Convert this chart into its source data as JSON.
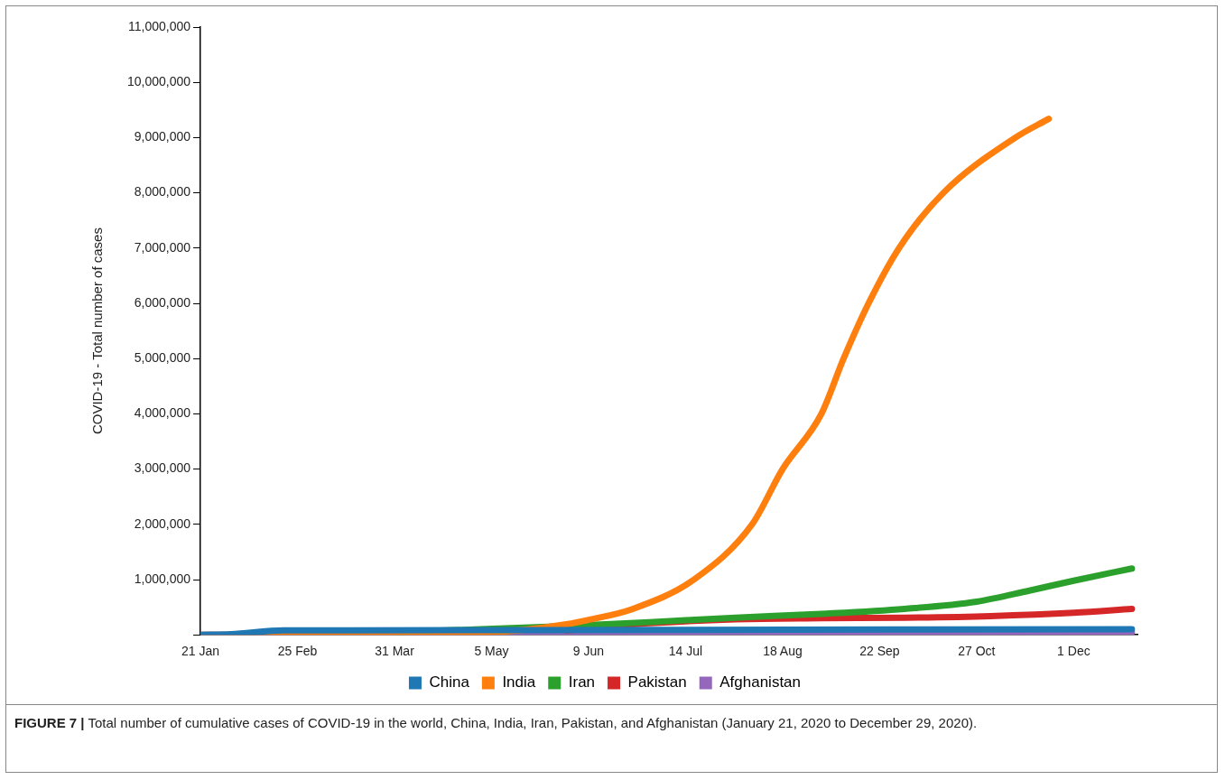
{
  "chart_data": {
    "type": "line",
    "ylabel": "COVID-19 - Total number of cases",
    "xlim": [
      "2020-01-21",
      "2020-12-24"
    ],
    "xticks": [
      {
        "value": "2020-01-21",
        "label": "21 Jan"
      },
      {
        "value": "2020-02-25",
        "label": "25 Feb"
      },
      {
        "value": "2020-03-31",
        "label": "31 Mar"
      },
      {
        "value": "2020-05-05",
        "label": "5 May"
      },
      {
        "value": "2020-06-09",
        "label": "9 Jun"
      },
      {
        "value": "2020-07-14",
        "label": "14 Jul"
      },
      {
        "value": "2020-08-18",
        "label": "18 Aug"
      },
      {
        "value": "2020-09-22",
        "label": "22 Sep"
      },
      {
        "value": "2020-10-27",
        "label": "27 Oct"
      },
      {
        "value": "2020-12-01",
        "label": "1 Dec"
      }
    ],
    "ylim": [
      0,
      11000000
    ],
    "yticks": [
      {
        "value": 0,
        "label": null
      },
      {
        "value": 1000000,
        "label": "1,000,000"
      },
      {
        "value": 2000000,
        "label": "2,000,000"
      },
      {
        "value": 3000000,
        "label": "3,000,000"
      },
      {
        "value": 4000000,
        "label": "4,000,000"
      },
      {
        "value": 5000000,
        "label": "5,000,000"
      },
      {
        "value": 6000000,
        "label": "6,000,000"
      },
      {
        "value": 7000000,
        "label": "7,000,000"
      },
      {
        "value": 8000000,
        "label": "8,000,000"
      },
      {
        "value": 9000000,
        "label": "9,000,000"
      },
      {
        "value": 10000000,
        "label": "10,000,000"
      },
      {
        "value": 11000000,
        "label": "11,000,000"
      }
    ],
    "grid": false,
    "legend": "bottom",
    "marker": "none",
    "line_style": "solid",
    "annotations": [
      "FIGURE 7 | Total number of cumulative cases of COVID-19 in the world, China, India, Iran, Pakistan, and Afghanistan (January 21, 2020 to December 29, 2020)."
    ],
    "series": [
      {
        "name": "China",
        "color": "#1f77b4",
        "x": [
          "2020-01-21",
          "2020-02-01",
          "2020-02-20",
          "2020-03-15",
          "2020-07-01",
          "2020-12-22"
        ],
        "values": [
          0,
          10000,
          80000,
          80000,
          90000,
          100000
        ]
      },
      {
        "name": "India",
        "color": "#ff7f0e",
        "x": [
          "2020-01-21",
          "2020-03-01",
          "2020-04-01",
          "2020-05-01",
          "2020-05-15",
          "2020-06-01",
          "2020-06-09",
          "2020-06-25",
          "2020-07-17",
          "2020-08-07",
          "2020-08-18",
          "2020-09-01",
          "2020-09-09",
          "2020-09-18",
          "2020-09-29",
          "2020-10-15",
          "2020-11-10",
          "2020-11-22"
        ],
        "values": [
          0,
          0,
          0,
          40000,
          80000,
          190000,
          270000,
          470000,
          1000000,
          2000000,
          3000000,
          4000000,
          5000000,
          6000000,
          7000000,
          8000000,
          9000000,
          9340000
        ]
      },
      {
        "name": "Iran",
        "color": "#2ca02c",
        "x": [
          "2020-04-01",
          "2020-05-01",
          "2020-06-01",
          "2020-07-01",
          "2020-08-01",
          "2020-09-01",
          "2020-10-01",
          "2020-10-27",
          "2020-11-15",
          "2020-12-01",
          "2020-12-22"
        ],
        "values": [
          50000,
          100000,
          160000,
          230000,
          310000,
          380000,
          470000,
          600000,
          800000,
          980000,
          1200000
        ]
      },
      {
        "name": "Pakistan",
        "color": "#d62728",
        "x": [
          "2020-06-01",
          "2020-07-01",
          "2020-08-01",
          "2020-09-01",
          "2020-10-01",
          "2020-11-01",
          "2020-12-01",
          "2020-12-22"
        ],
        "values": [
          80000,
          210000,
          280000,
          300000,
          310000,
          340000,
          400000,
          470000
        ]
      },
      {
        "name": "Afghanistan",
        "color": "#9467bd",
        "x": [
          "2020-01-21",
          "2020-03-01",
          "2020-05-01",
          "2020-07-01",
          "2020-10-01",
          "2020-12-22"
        ],
        "values": [
          0,
          0,
          0,
          30000,
          40000,
          50000
        ]
      }
    ]
  }
}
